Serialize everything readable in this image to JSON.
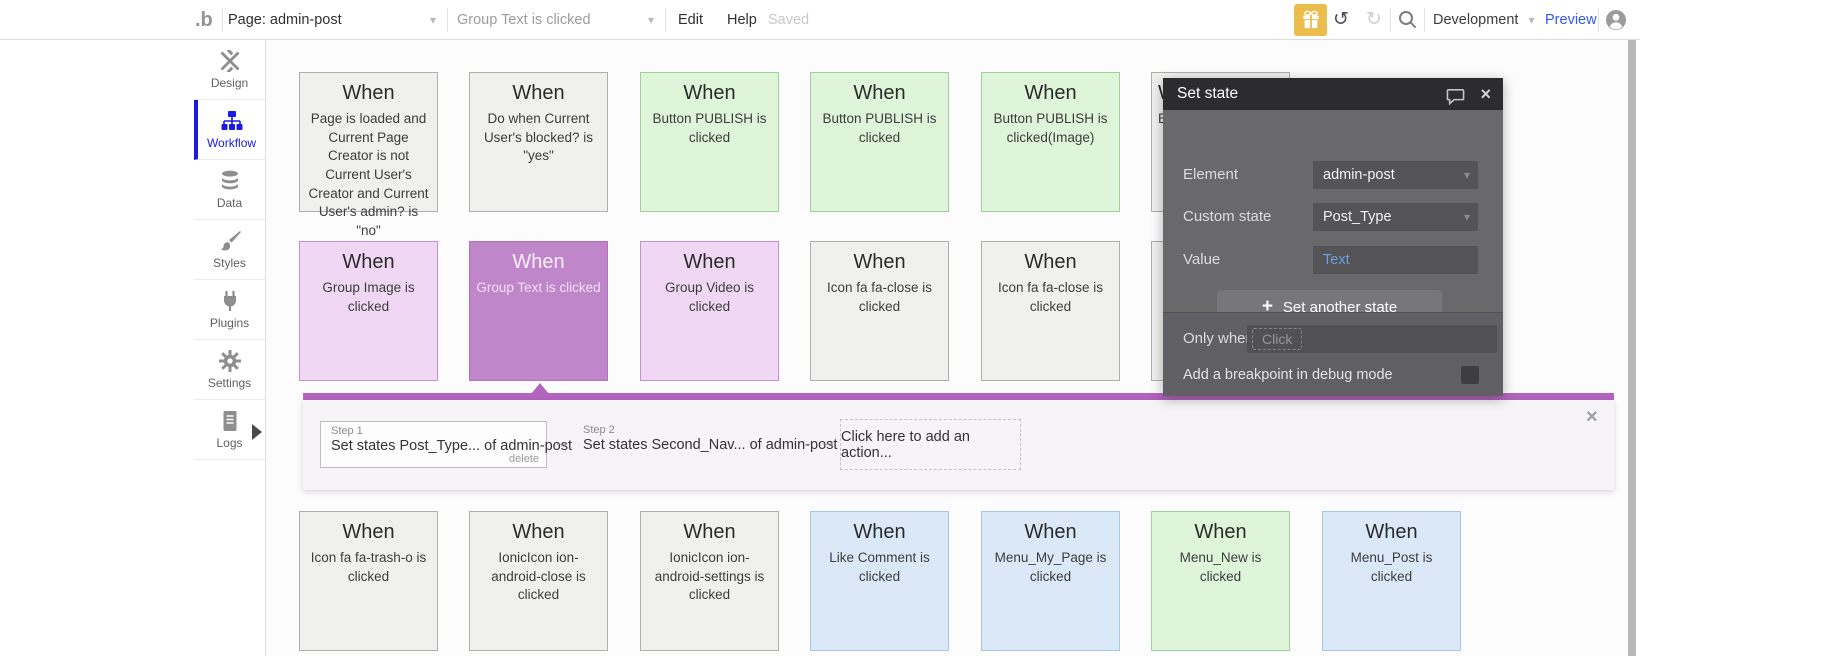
{
  "topbar": {
    "logo": ".b",
    "page_selector": "Page: admin-post",
    "event_selector": "Group Text is clicked",
    "edit": "Edit",
    "help": "Help",
    "saved": "Saved",
    "environment": "Development",
    "preview": "Preview",
    "caret_glyph": "▾",
    "undo_glyph": "↺",
    "redo_glyph": "↻"
  },
  "sidebar": {
    "items": [
      {
        "label": "Design",
        "icon": "design-tools-icon",
        "active": false
      },
      {
        "label": "Workflow",
        "icon": "sitemap-icon",
        "active": true
      },
      {
        "label": "Data",
        "icon": "database-icon",
        "active": false
      },
      {
        "label": "Styles",
        "icon": "paintbrush-icon",
        "active": false
      },
      {
        "label": "Plugins",
        "icon": "plug-icon",
        "active": false
      },
      {
        "label": "Settings",
        "icon": "gear-icon",
        "active": false
      },
      {
        "label": "Logs",
        "icon": "document-icon",
        "active": false
      }
    ]
  },
  "canvas": {
    "cards": [
      {
        "row": 0,
        "col": 0,
        "color": "gray",
        "title": "When",
        "body": "Page is loaded and Current Page Creator is not Current User's Creator and Current User's admin? is \"no\""
      },
      {
        "row": 0,
        "col": 1,
        "color": "gray",
        "title": "When",
        "body": "Do when Current User's blocked? is \"yes\""
      },
      {
        "row": 0,
        "col": 2,
        "color": "green",
        "title": "When",
        "body": "Button PUBLISH is clicked"
      },
      {
        "row": 0,
        "col": 3,
        "color": "green",
        "title": "When",
        "body": "Button PUBLISH is clicked"
      },
      {
        "row": 0,
        "col": 4,
        "color": "green",
        "title": "When",
        "body": "Button PUBLISH is clicked(Image)"
      },
      {
        "row": 0,
        "col": 5,
        "color": "gray",
        "title": "When",
        "body": "E",
        "align": "left"
      },
      {
        "row": 1,
        "col": 0,
        "color": "purple",
        "title": "When",
        "body": "Group Image is clicked"
      },
      {
        "row": 1,
        "col": 1,
        "color": "purpleSelected",
        "title": "When",
        "body": "Group Text is clicked"
      },
      {
        "row": 1,
        "col": 2,
        "color": "purple",
        "title": "When",
        "body": "Group Video is clicked"
      },
      {
        "row": 1,
        "col": 3,
        "color": "gray",
        "title": "When",
        "body": "Icon fa fa-close is clicked"
      },
      {
        "row": 1,
        "col": 4,
        "color": "gray",
        "title": "When",
        "body": "Icon fa fa-close is clicked"
      },
      {
        "row": 1,
        "col": 5,
        "color": "gray",
        "title": "When",
        "body": ""
      },
      {
        "row": 2,
        "col": 0,
        "color": "gray",
        "title": "When",
        "body": "Icon fa fa-trash-o is clicked"
      },
      {
        "row": 2,
        "col": 1,
        "color": "gray",
        "title": "When",
        "body": "IonicIcon ion-android-close is clicked"
      },
      {
        "row": 2,
        "col": 2,
        "color": "gray",
        "title": "When",
        "body": "IonicIcon ion-android-settings is clicked"
      },
      {
        "row": 2,
        "col": 3,
        "color": "blue",
        "title": "When",
        "body": "Like Comment is clicked"
      },
      {
        "row": 2,
        "col": 4,
        "color": "blue",
        "title": "When",
        "body": "Menu_My_Page is clicked"
      },
      {
        "row": 2,
        "col": 5,
        "color": "green",
        "title": "When",
        "body": "Menu_New is clicked"
      },
      {
        "row": 2,
        "col": 6,
        "color": "blue",
        "title": "When",
        "body": "Menu_Post is clicked"
      }
    ]
  },
  "step_editor": {
    "steps": [
      {
        "label": "Step 1",
        "text": "Set states Post_Type... of admin-post",
        "link": "delete"
      },
      {
        "label": "Step 2",
        "text": "Set states Second_Nav... of admin-post"
      }
    ],
    "arrow_glyph": "→",
    "add_action": "Click here to add an action...",
    "close_glyph": "×"
  },
  "modal": {
    "title": "Set state",
    "close_glyph": "×",
    "fields": [
      {
        "label": "Element",
        "value": "admin-post"
      },
      {
        "label": "Custom state",
        "value": "Post_Type"
      },
      {
        "label": "Value",
        "value": "Text"
      }
    ],
    "caret_glyph": "▾",
    "add_state_plus": "+",
    "add_state_button": "Set another state",
    "only_when_label": "Only when",
    "only_when_value": "Click",
    "breakpoint_label": "Add a breakpoint in debug mode"
  },
  "colors": {
    "workflow_active_blue": "#1b1be0",
    "preview_blue": "#2f5ae8",
    "gift_gold": "#eabd4d",
    "selection_bar_purple": "#b364be",
    "cards": {
      "gray": {
        "bg": "#f0f0ee",
        "border": "#adafac",
        "title": "#2b2b2b",
        "text": "#3d3d3d"
      },
      "green": {
        "bg": "#def5da",
        "border": "#9fd09a",
        "title": "#2b2b2b",
        "text": "#3d3d3d"
      },
      "purple": {
        "bg": "#f0d8f5",
        "border": "#c78fd2",
        "title": "#2b2b2b",
        "text": "#3d3d3d"
      },
      "purpleSelected": {
        "bg": "#c086ca",
        "border": "#b671c1",
        "title": "#f8eefa",
        "text": "#efe0f2"
      },
      "blue": {
        "bg": "#dae8f7",
        "border": "#a6c6e4",
        "title": "#2b2b2b",
        "text": "#3d3d3d"
      }
    }
  }
}
